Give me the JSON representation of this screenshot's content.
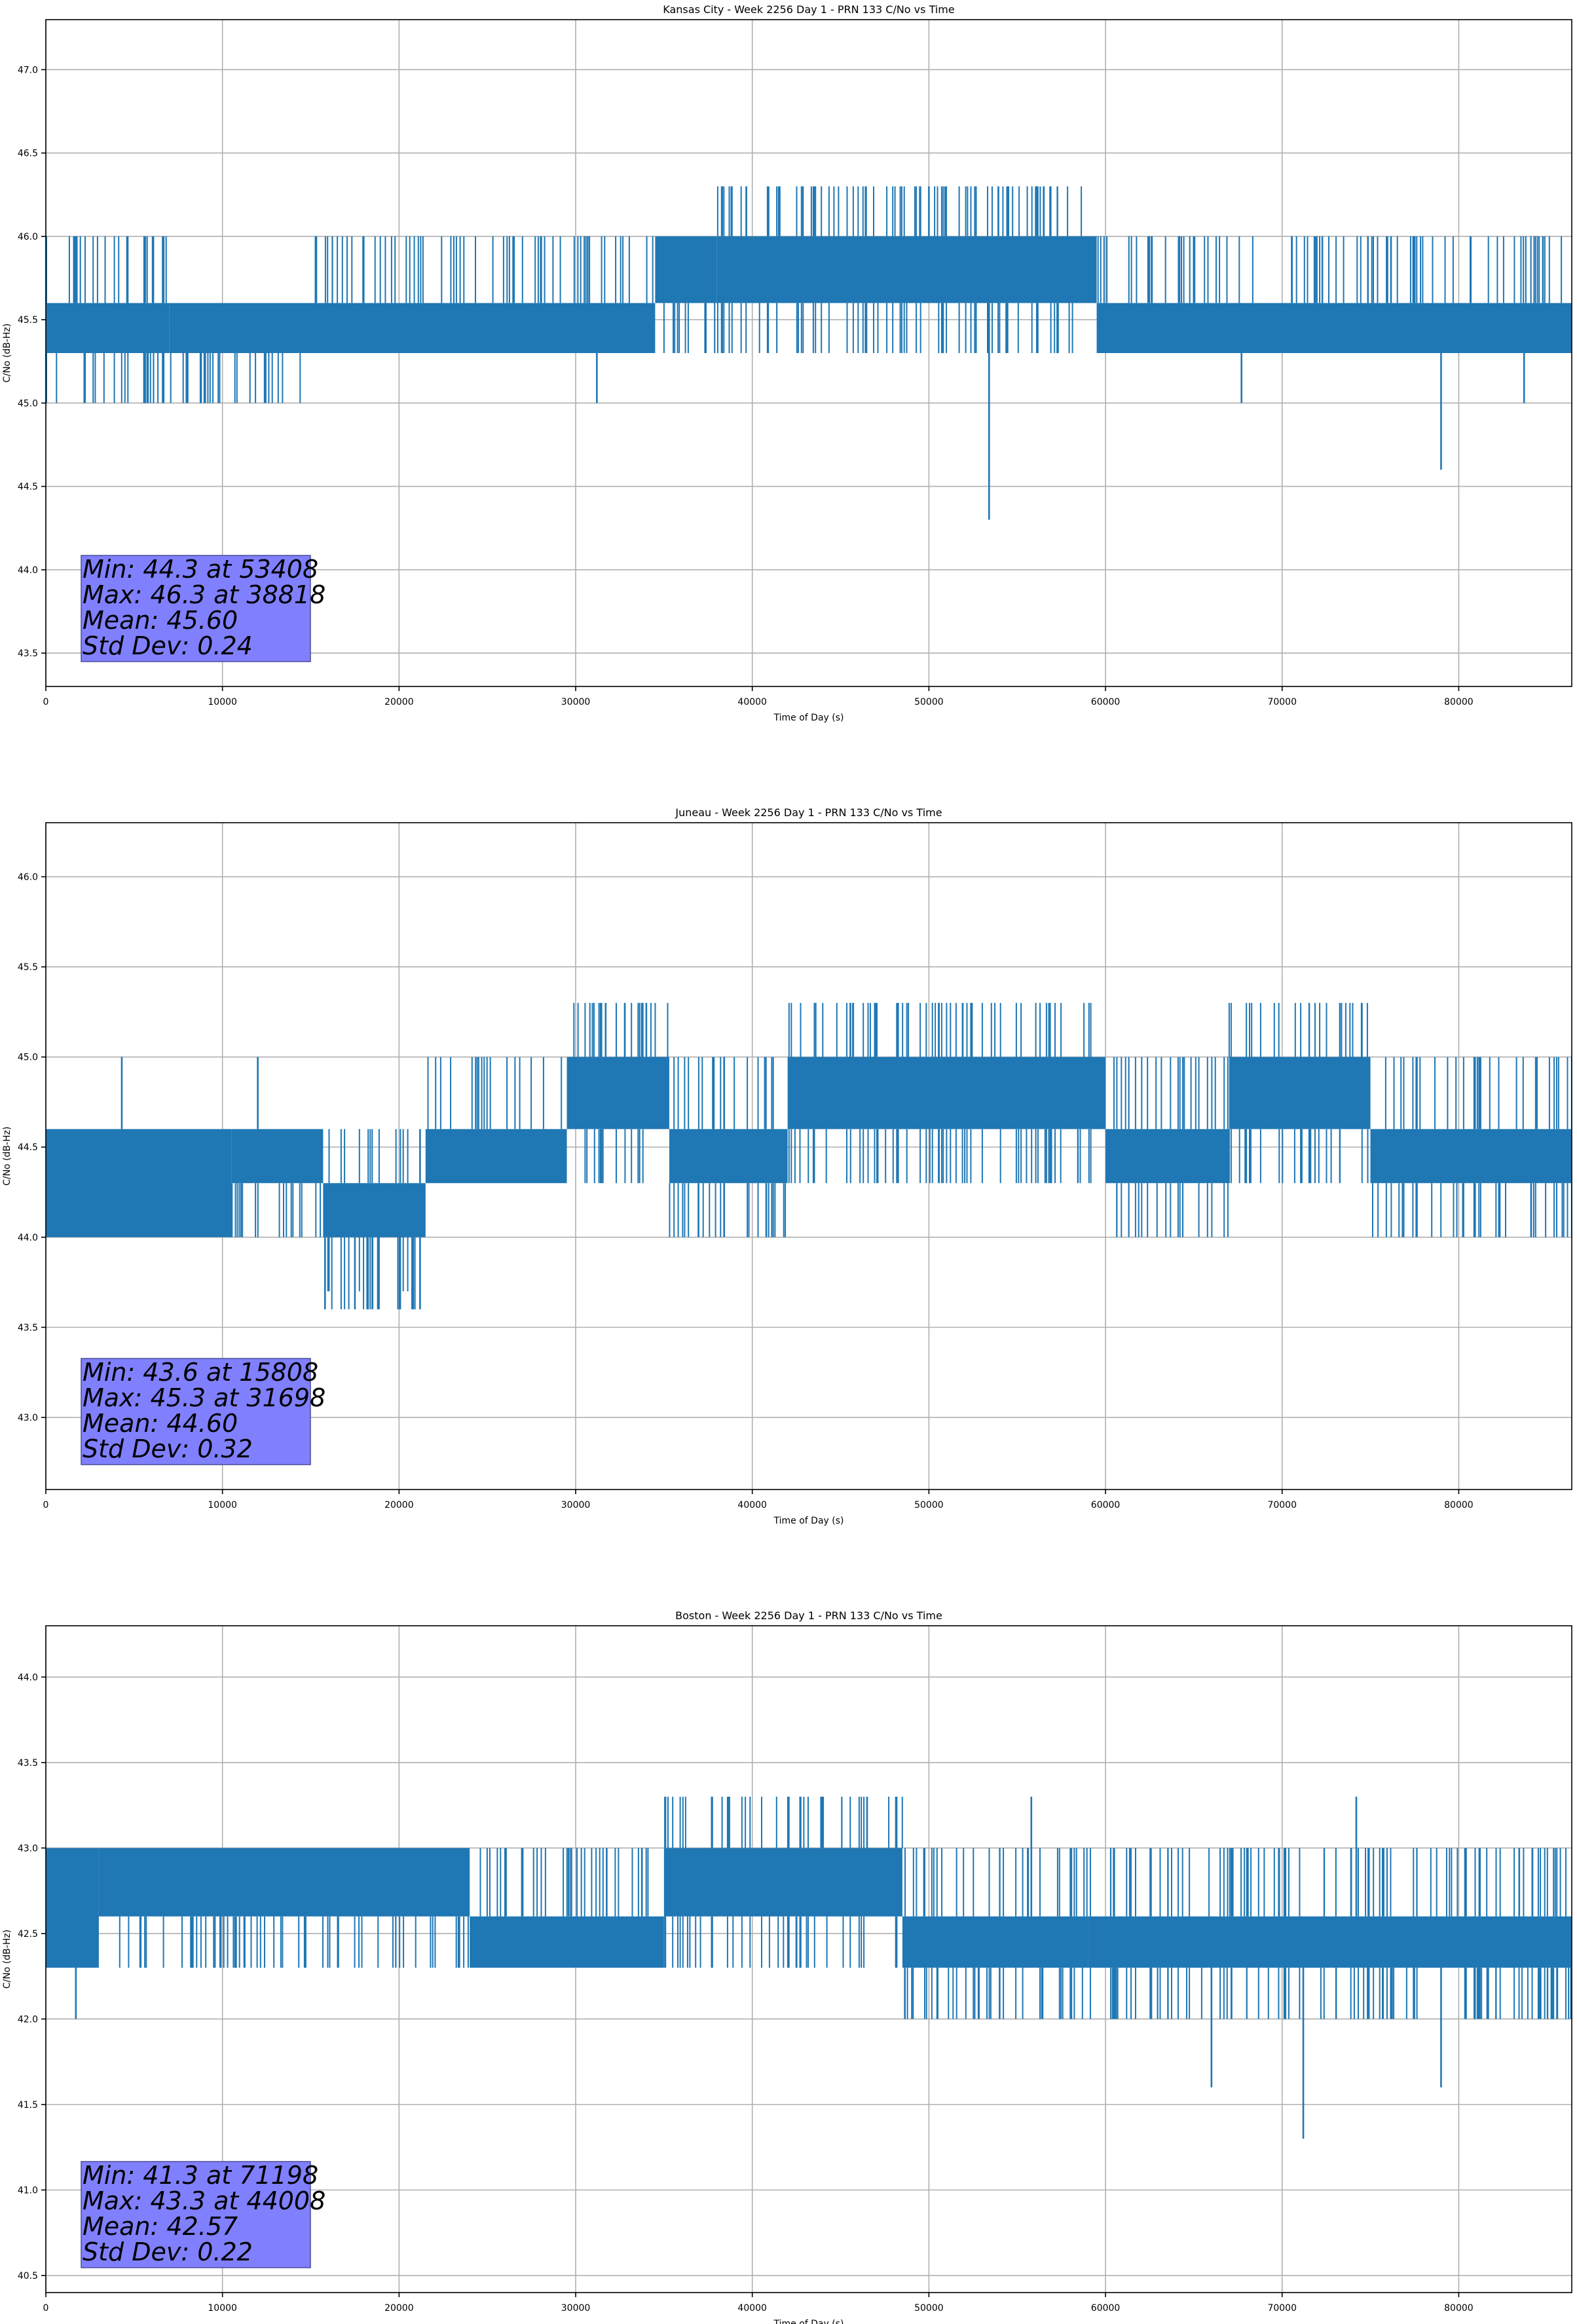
{
  "chart_data": [
    {
      "type": "line",
      "title": "Kansas City - Week 2256 Day 1 - PRN 133 C/No vs Time",
      "xlabel": "Time of Day (s)",
      "ylabel": "C/No (dB-Hz)",
      "xlim": [
        0,
        86400
      ],
      "ylim": [
        43.3,
        47.3
      ],
      "xticks": [
        0,
        10000,
        20000,
        30000,
        40000,
        50000,
        60000,
        70000,
        80000
      ],
      "yticks": [
        43.5,
        44.0,
        44.5,
        45.0,
        45.5,
        46.0,
        46.5,
        47.0
      ],
      "grid": true,
      "color": "#1f77b4",
      "segments": [
        {
          "x0": 0,
          "x1": 7000,
          "lo": 45.3,
          "hi": 45.6,
          "up": 46.0,
          "down": 45.0
        },
        {
          "x0": 7000,
          "x1": 15000,
          "lo": 45.3,
          "hi": 45.6,
          "up": 45.6,
          "down": 45.0
        },
        {
          "x0": 15000,
          "x1": 34500,
          "lo": 45.3,
          "hi": 45.6,
          "up": 46.0,
          "down": 45.3
        },
        {
          "x0": 34500,
          "x1": 38000,
          "lo": 45.6,
          "hi": 46.0,
          "up": 46.0,
          "down": 45.3
        },
        {
          "x0": 38000,
          "x1": 59500,
          "lo": 45.6,
          "hi": 46.0,
          "up": 46.3,
          "down": 45.3
        },
        {
          "x0": 59500,
          "x1": 86400,
          "lo": 45.3,
          "hi": 45.6,
          "up": 46.0,
          "down": 45.3
        }
      ],
      "spikes": [
        {
          "x": 53408,
          "y": 44.3
        },
        {
          "x": 79000,
          "y": 44.6
        },
        {
          "x": 67700,
          "y": 45.0
        },
        {
          "x": 83700,
          "y": 45.0
        },
        {
          "x": 31200,
          "y": 45.0
        },
        {
          "x": 5600,
          "y": 45.0
        },
        {
          "x": 38818,
          "y": 46.3
        },
        {
          "x": 41500,
          "y": 46.3
        },
        {
          "x": 43500,
          "y": 46.3
        },
        {
          "x": 50000,
          "y": 46.3
        },
        {
          "x": 54500,
          "y": 46.3
        },
        {
          "x": 56500,
          "y": 46.3
        }
      ],
      "stats": {
        "min": "Min: 44.3 at 53408",
        "max": "Max: 46.3 at 38818",
        "mean": "Mean: 45.60",
        "std": "Std Dev: 0.24"
      }
    },
    {
      "type": "line",
      "title": "Juneau - Week 2256 Day 1 - PRN 133 C/No vs Time",
      "xlabel": "Time of Day (s)",
      "ylabel": "C/No (dB-Hz)",
      "xlim": [
        0,
        86400
      ],
      "ylim": [
        42.6,
        46.3
      ],
      "xticks": [
        0,
        10000,
        20000,
        30000,
        40000,
        50000,
        60000,
        70000,
        80000
      ],
      "yticks": [
        43.0,
        43.5,
        44.0,
        44.5,
        45.0,
        45.5,
        46.0
      ],
      "grid": true,
      "color": "#1f77b4",
      "segments": [
        {
          "x0": 0,
          "x1": 10500,
          "lo": 44.0,
          "hi": 44.6,
          "up": 44.6,
          "down": 44.0
        },
        {
          "x0": 10500,
          "x1": 15700,
          "lo": 44.3,
          "hi": 44.6,
          "up": 44.6,
          "down": 44.0
        },
        {
          "x0": 15700,
          "x1": 21500,
          "lo": 44.0,
          "hi": 44.3,
          "up": 44.6,
          "down": 43.6
        },
        {
          "x0": 21500,
          "x1": 29500,
          "lo": 44.3,
          "hi": 44.6,
          "up": 45.0,
          "down": 44.3
        },
        {
          "x0": 29500,
          "x1": 35300,
          "lo": 44.6,
          "hi": 45.0,
          "up": 45.3,
          "down": 44.3
        },
        {
          "x0": 35300,
          "x1": 42000,
          "lo": 44.3,
          "hi": 44.6,
          "up": 45.0,
          "down": 44.0
        },
        {
          "x0": 42000,
          "x1": 60000,
          "lo": 44.6,
          "hi": 45.0,
          "up": 45.3,
          "down": 44.3
        },
        {
          "x0": 60000,
          "x1": 67000,
          "lo": 44.3,
          "hi": 44.6,
          "up": 45.0,
          "down": 44.0
        },
        {
          "x0": 67000,
          "x1": 75000,
          "lo": 44.6,
          "hi": 45.0,
          "up": 45.3,
          "down": 44.3
        },
        {
          "x0": 75000,
          "x1": 86400,
          "lo": 44.3,
          "hi": 44.6,
          "up": 45.0,
          "down": 44.0
        }
      ],
      "spikes": [
        {
          "x": 15808,
          "y": 43.6
        },
        {
          "x": 17500,
          "y": 43.6
        },
        {
          "x": 18800,
          "y": 43.6
        },
        {
          "x": 20800,
          "y": 43.6
        },
        {
          "x": 4300,
          "y": 45.0
        },
        {
          "x": 12000,
          "y": 45.0
        },
        {
          "x": 31698,
          "y": 45.3
        },
        {
          "x": 34000,
          "y": 45.3
        },
        {
          "x": 45700,
          "y": 45.3
        }
      ],
      "stats": {
        "min": "Min: 43.6 at 15808",
        "max": "Max: 45.3 at 31698",
        "mean": "Mean: 44.60",
        "std": "Std Dev: 0.32"
      }
    },
    {
      "type": "line",
      "title": "Boston - Week 2256 Day 1 - PRN 133 C/No vs Time",
      "xlabel": "Time of Day (s)",
      "ylabel": "C/No (dB-Hz)",
      "xlim": [
        0,
        86400
      ],
      "ylim": [
        40.4,
        44.3
      ],
      "xticks": [
        0,
        10000,
        20000,
        30000,
        40000,
        50000,
        60000,
        70000,
        80000
      ],
      "yticks": [
        40.5,
        41.0,
        41.5,
        42.0,
        42.5,
        43.0,
        43.5,
        44.0
      ],
      "grid": true,
      "color": "#1f77b4",
      "segments": [
        {
          "x0": 0,
          "x1": 3000,
          "lo": 42.3,
          "hi": 43.0,
          "up": 43.0,
          "down": 42.3
        },
        {
          "x0": 3000,
          "x1": 24000,
          "lo": 42.6,
          "hi": 43.0,
          "up": 43.0,
          "down": 42.3
        },
        {
          "x0": 24000,
          "x1": 35000,
          "lo": 42.3,
          "hi": 42.6,
          "up": 43.0,
          "down": 42.3
        },
        {
          "x0": 35000,
          "x1": 48500,
          "lo": 42.6,
          "hi": 43.0,
          "up": 43.3,
          "down": 42.3
        },
        {
          "x0": 48500,
          "x1": 59000,
          "lo": 42.3,
          "hi": 42.6,
          "up": 43.0,
          "down": 42.0
        },
        {
          "x0": 59000,
          "x1": 86400,
          "lo": 42.3,
          "hi": 42.6,
          "up": 43.0,
          "down": 42.0
        }
      ],
      "spikes": [
        {
          "x": 71198,
          "y": 41.3
        },
        {
          "x": 79000,
          "y": 41.6
        },
        {
          "x": 66000,
          "y": 41.6
        },
        {
          "x": 1700,
          "y": 42.0
        },
        {
          "x": 44008,
          "y": 43.3
        },
        {
          "x": 46500,
          "y": 43.3
        },
        {
          "x": 55800,
          "y": 43.3
        },
        {
          "x": 74200,
          "y": 43.3
        }
      ],
      "stats": {
        "min": "Min: 41.3 at 71198",
        "max": "Max: 43.3 at 44008",
        "mean": "Mean: 42.57",
        "std": "Std Dev: 0.22"
      }
    }
  ]
}
